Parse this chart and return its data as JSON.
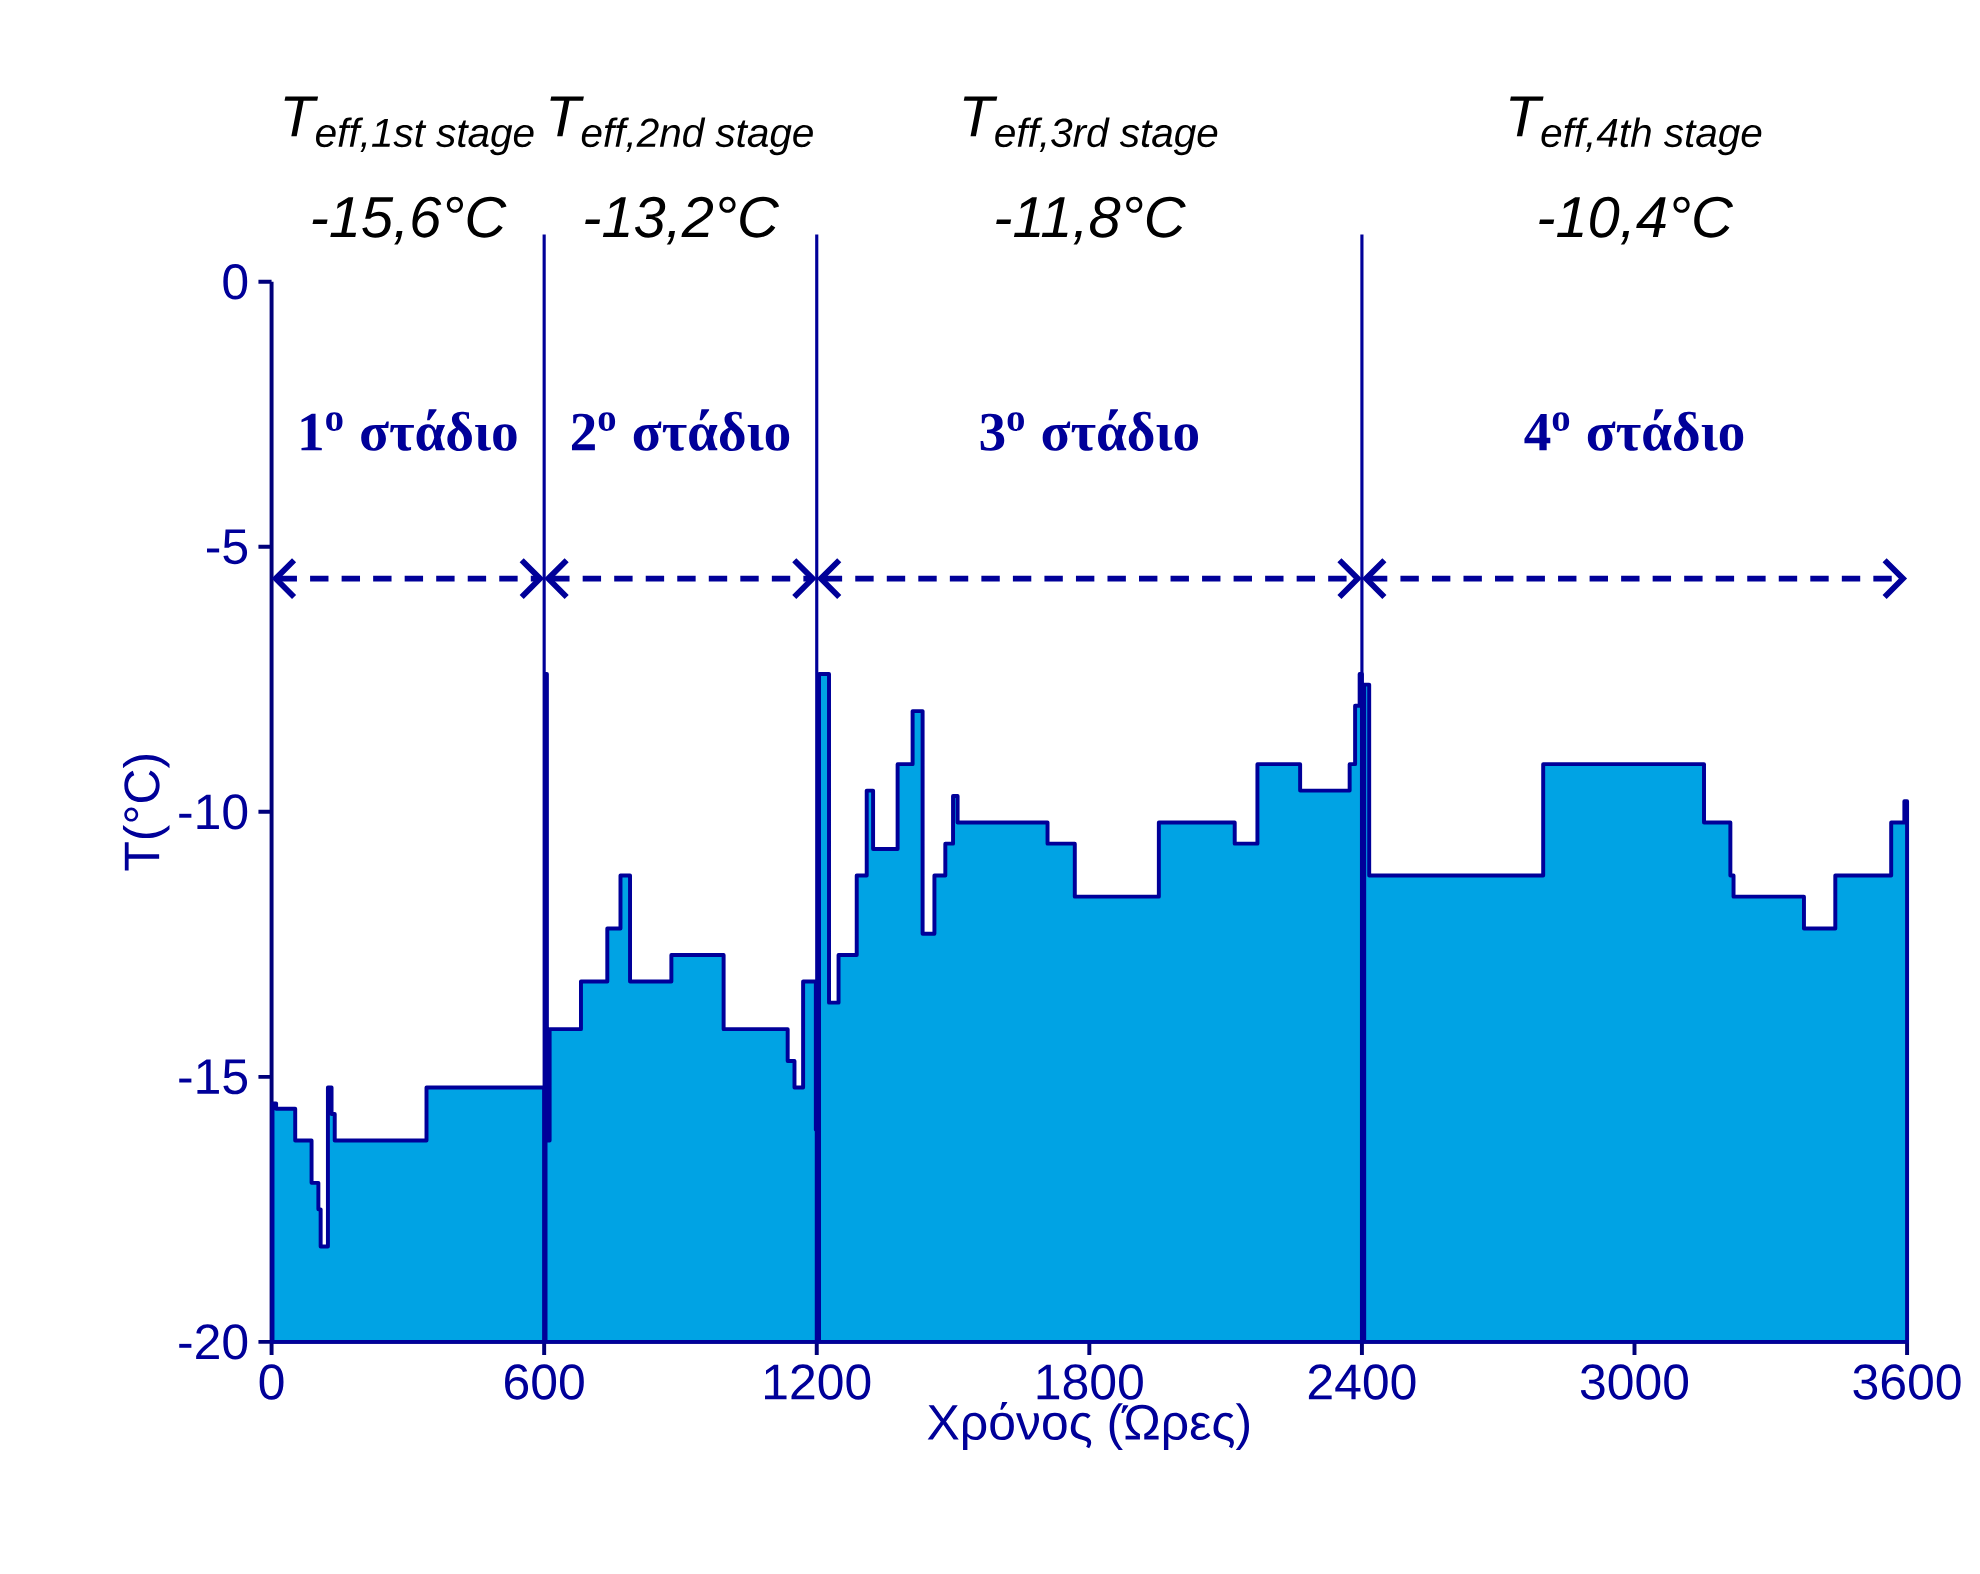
{
  "chart_data": {
    "type": "area",
    "xlabel": "Χρόνος (Ώρες)",
    "ylabel": "T(°C)",
    "xlim": [
      0,
      3600
    ],
    "xticks": [
      0,
      600,
      1200,
      1800,
      2400,
      3000,
      3600
    ],
    "ylim": [
      -20,
      0
    ],
    "yticks": [
      -20,
      -15,
      -10,
      -5,
      0
    ],
    "series": [
      {
        "color": "#00a3e4",
        "x": [
          0,
          2,
          2,
          10,
          10,
          52,
          52,
          88,
          88,
          103,
          103,
          108,
          108,
          124,
          124,
          132,
          132,
          139,
          139,
          341,
          341,
          600,
          600,
          603,
          603,
          606,
          606,
          612,
          612,
          681,
          681,
          739,
          739,
          768,
          768,
          789,
          789,
          880,
          880,
          995,
          995,
          1136,
          1136,
          1151,
          1151,
          1170,
          1170,
          1198,
          1198,
          1200,
          1200,
          1205,
          1205,
          1227,
          1227,
          1248,
          1248,
          1288,
          1288,
          1310,
          1310,
          1324,
          1324,
          1378,
          1378,
          1411,
          1411,
          1433,
          1433,
          1459,
          1459,
          1483,
          1483,
          1500,
          1500,
          1510,
          1510,
          1708,
          1708,
          1768,
          1768,
          1953,
          1953,
          2120,
          2120,
          2170,
          2170,
          2264,
          2264,
          2373,
          2373,
          2385,
          2385,
          2395,
          2395,
          2400,
          2400,
          2405,
          2405,
          2416,
          2416,
          2799,
          2799,
          3153,
          3153,
          3211,
          3211,
          3218,
          3218,
          3373,
          3373,
          3442,
          3442,
          3565,
          3565,
          3594,
          3594,
          3600,
          3600
        ],
        "values": [
          -20,
          -20,
          -15.5,
          -15.5,
          -15.6,
          -15.6,
          -16.2,
          -16.2,
          -17.0,
          -17.0,
          -17.5,
          -17.5,
          -18.2,
          -18.2,
          -15.2,
          -15.2,
          -15.7,
          -15.7,
          -16.2,
          -16.2,
          -15.2,
          -15.2,
          -20,
          -20,
          -7.4,
          -7.4,
          -16.2,
          -16.2,
          -14.1,
          -14.1,
          -13.2,
          -13.2,
          -12.2,
          -12.2,
          -11.2,
          -11.2,
          -13.2,
          -13.2,
          -12.7,
          -12.7,
          -14.1,
          -14.1,
          -14.7,
          -14.7,
          -15.2,
          -15.2,
          -13.2,
          -13.2,
          -16.0,
          -16.0,
          -20,
          -20,
          -7.4,
          -7.4,
          -13.6,
          -13.6,
          -12.7,
          -12.7,
          -11.2,
          -11.2,
          -9.6,
          -9.6,
          -10.7,
          -10.7,
          -9.1,
          -9.1,
          -8.1,
          -8.1,
          -12.3,
          -12.3,
          -11.2,
          -11.2,
          -10.6,
          -10.6,
          -9.7,
          -9.7,
          -10.2,
          -10.2,
          -10.6,
          -10.6,
          -11.6,
          -11.6,
          -10.2,
          -10.2,
          -10.6,
          -10.6,
          -9.1,
          -9.1,
          -9.6,
          -9.6,
          -9.1,
          -9.1,
          -8.0,
          -8.0,
          -7.4,
          -7.4,
          -20,
          -20,
          -7.6,
          -7.6,
          -11.2,
          -11.2,
          -9.1,
          -9.1,
          -10.2,
          -10.2,
          -11.2,
          -11.2,
          -11.6,
          -11.6,
          -12.2,
          -12.2,
          -11.2,
          -11.2,
          -10.2,
          -10.2,
          -9.8,
          -9.8,
          -20
        ]
      }
    ],
    "ref_lines": [
      {
        "axis": "x",
        "value": 600,
        "color": "#000099"
      },
      {
        "axis": "x",
        "value": 1200,
        "color": "#000099"
      },
      {
        "axis": "x",
        "value": 2400,
        "color": "#000099"
      }
    ],
    "annotations": [
      "\\textit{T}_{\\textit{eff,1st stage}}",
      "\\textit{T}_{\\textit{eff,2nd stage}}",
      "\\textit{T}_{\\textit{eff,3rd stage}}",
      "\\textit{T}_{\\textit{eff,4th stage}}",
      "-15,6°C",
      "-13,2°C",
      "-11,8°C",
      "-10,4°C",
      "1$^{o}$ στάδιο",
      "2$^{o}$ στάδιο",
      "3$^{o}$ στάδιο",
      "4$^{o}$ στάδιο"
    ]
  }
}
